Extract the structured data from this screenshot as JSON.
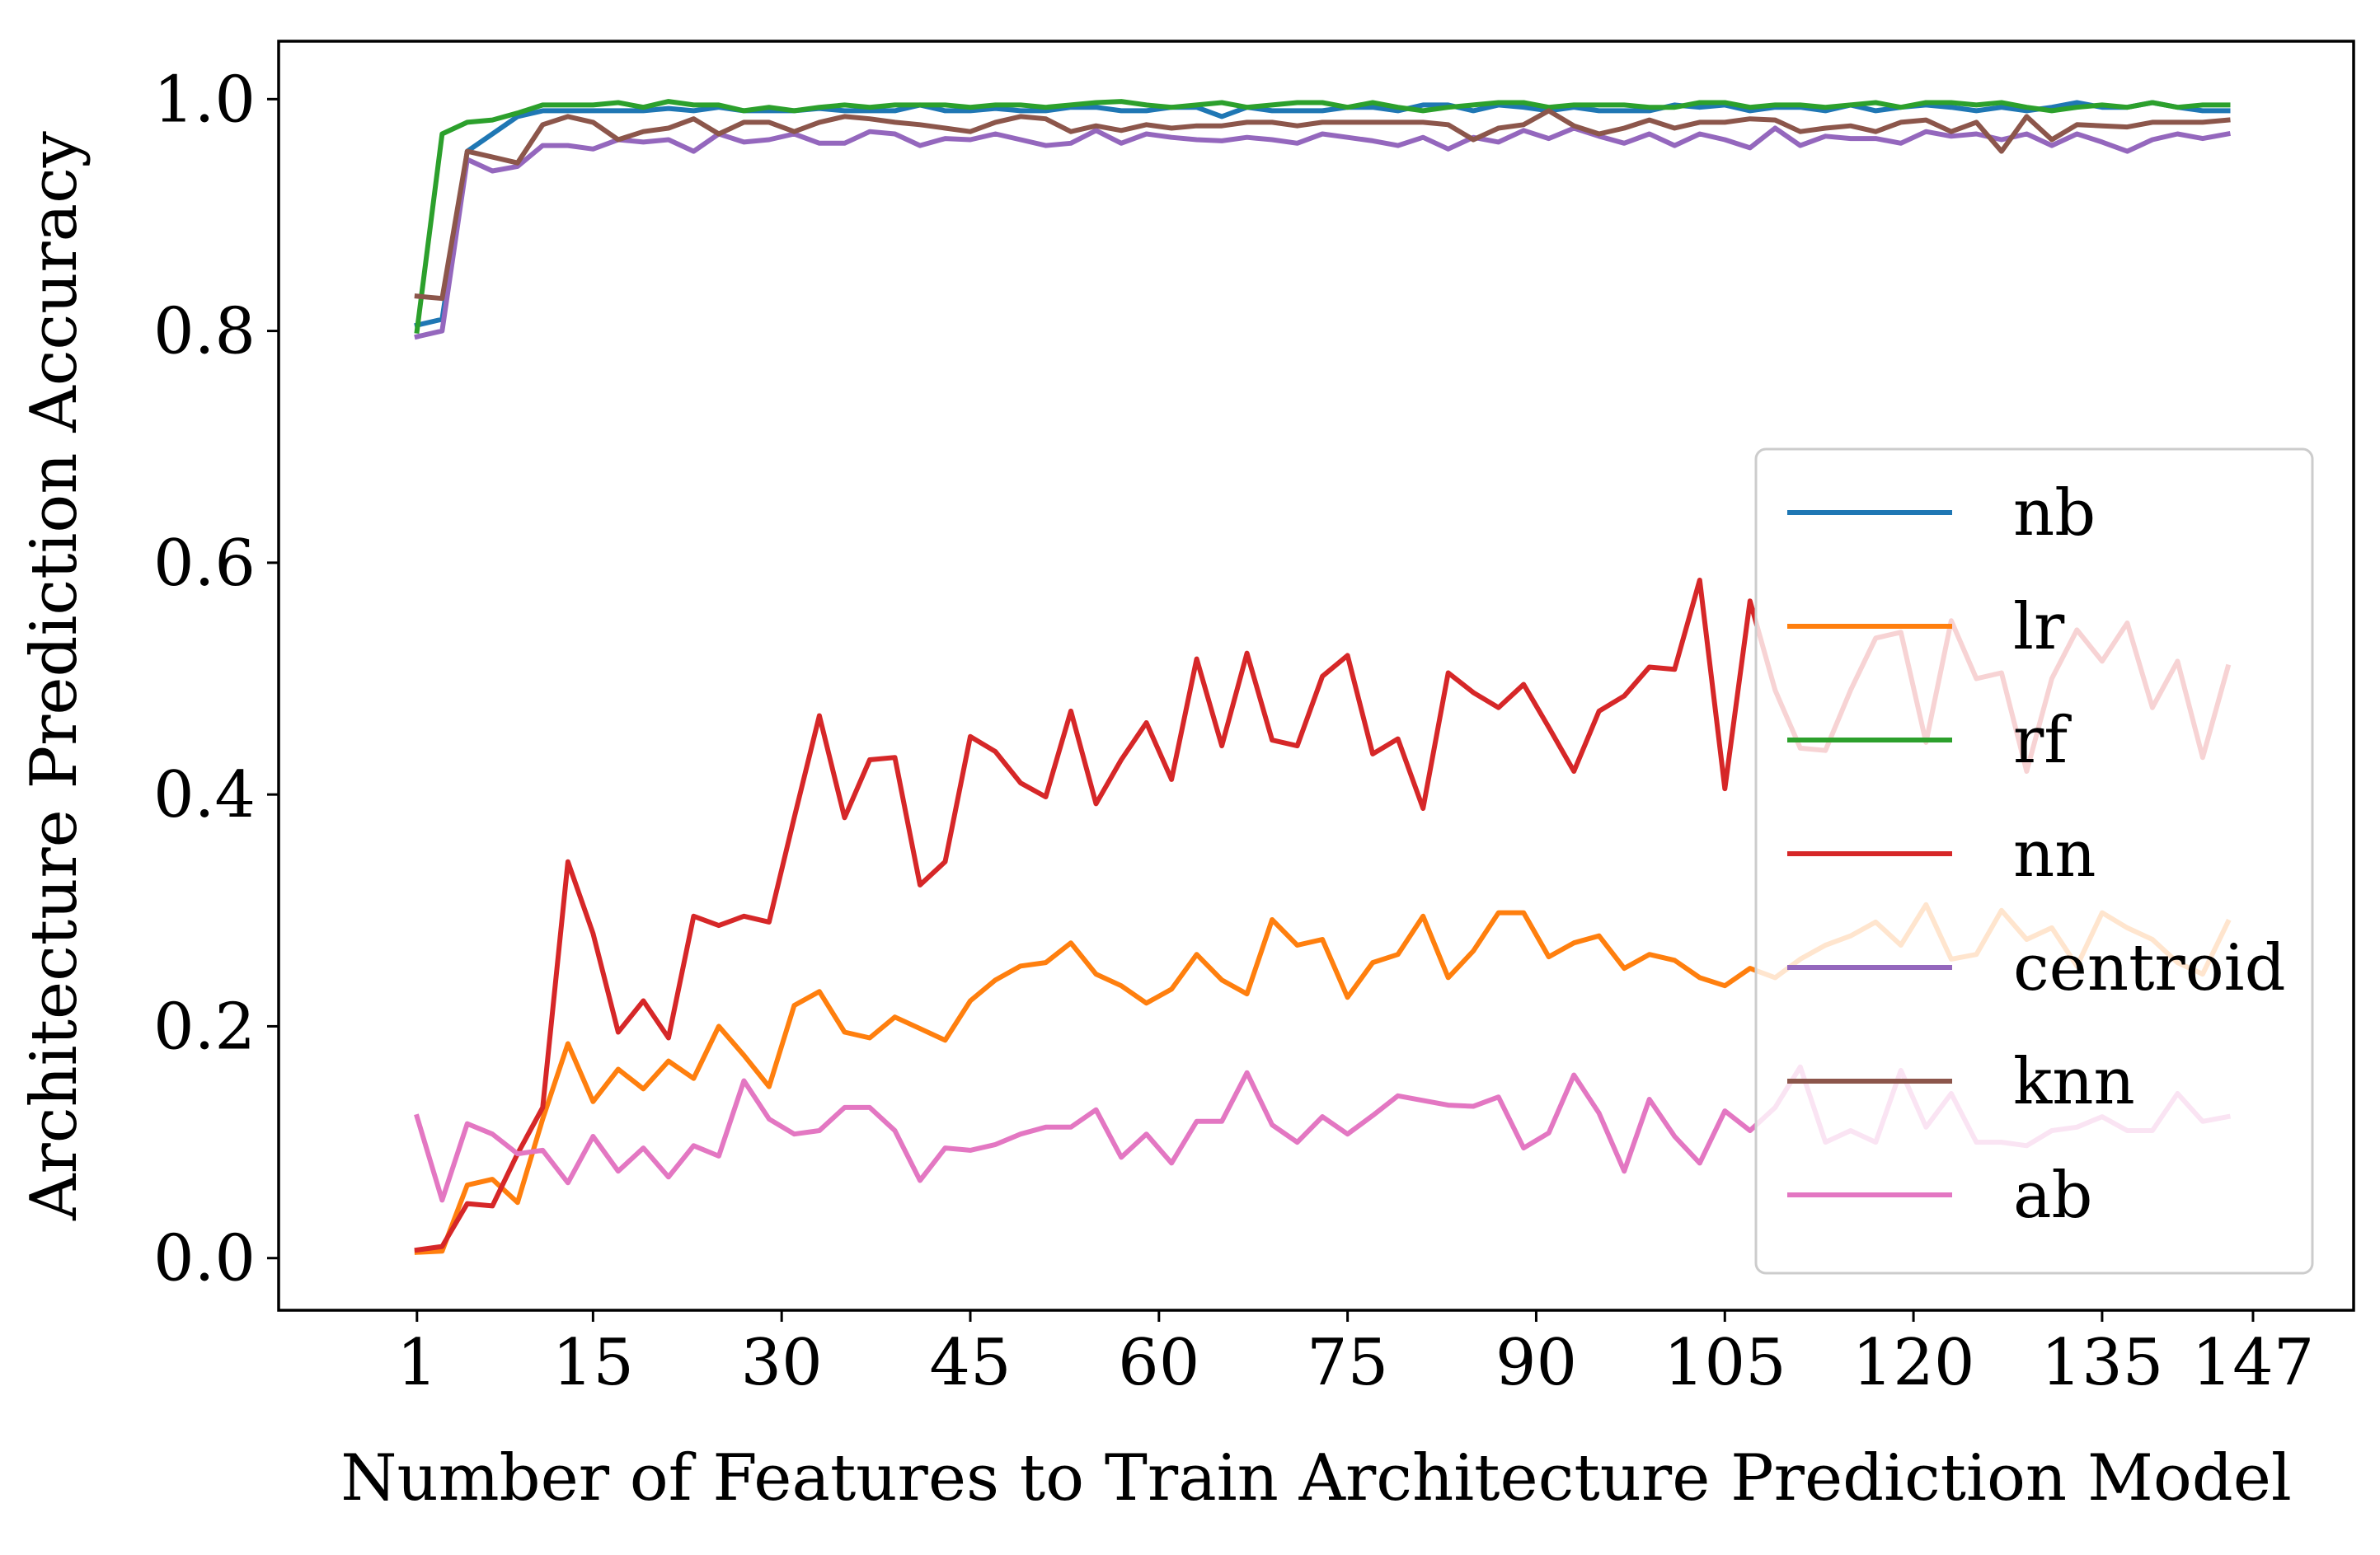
{
  "chart_data": {
    "type": "line",
    "title": "",
    "xlabel": "Number of Features to Train Architecture Prediction Model",
    "ylabel": "Architecture Prediction Accuracy",
    "xlim": [
      -10,
      155
    ],
    "ylim": [
      -0.045,
      1.05
    ],
    "xticks": [
      1,
      15,
      30,
      45,
      60,
      75,
      90,
      105,
      120,
      135,
      147
    ],
    "xtick_labels": [
      "1",
      "15",
      "30",
      "45",
      "60",
      "75",
      "90",
      "105",
      "120",
      "135",
      "147"
    ],
    "yticks": [
      0.0,
      0.2,
      0.4,
      0.6,
      0.8,
      1.0
    ],
    "ytick_labels": [
      "0.0",
      "0.2",
      "0.4",
      "0.6",
      "0.8",
      "1.0"
    ],
    "grid": false,
    "legend": {
      "position": "center-right"
    },
    "x": [
      1,
      3,
      5,
      7,
      9,
      11,
      13,
      15,
      17,
      19,
      21,
      23,
      25,
      27,
      29,
      31,
      33,
      35,
      37,
      39,
      41,
      43,
      45,
      47,
      49,
      51,
      53,
      55,
      57,
      59,
      61,
      63,
      65,
      67,
      69,
      71,
      73,
      75,
      77,
      79,
      81,
      83,
      85,
      87,
      89,
      91,
      93,
      95,
      97,
      99,
      101,
      103,
      105,
      107,
      109,
      111,
      113,
      115,
      117,
      119,
      121,
      123,
      125,
      127,
      129,
      131,
      133,
      135,
      137,
      139,
      141,
      143,
      145
    ],
    "series": [
      {
        "name": "nb",
        "color": "#1f77b4",
        "values": [
          0.805,
          0.81,
          0.955,
          0.97,
          0.985,
          0.99,
          0.99,
          0.99,
          0.99,
          0.99,
          0.992,
          0.99,
          0.993,
          0.99,
          0.99,
          0.99,
          0.992,
          0.99,
          0.99,
          0.99,
          0.995,
          0.99,
          0.99,
          0.992,
          0.99,
          0.99,
          0.993,
          0.993,
          0.99,
          0.99,
          0.993,
          0.993,
          0.985,
          0.993,
          0.99,
          0.99,
          0.99,
          0.993,
          0.993,
          0.99,
          0.995,
          0.995,
          0.99,
          0.995,
          0.993,
          0.99,
          0.993,
          0.99,
          0.99,
          0.99,
          0.995,
          0.993,
          0.995,
          0.99,
          0.993,
          0.993,
          0.99,
          0.995,
          0.99,
          0.993,
          0.995,
          0.993,
          0.99,
          0.993,
          0.99,
          0.993,
          0.997,
          0.993,
          0.993,
          0.997,
          0.993,
          0.99,
          0.99
        ]
      },
      {
        "name": "lr",
        "color": "#ff7f0e",
        "values": [
          0.005,
          0.006,
          0.063,
          0.068,
          0.048,
          0.12,
          0.185,
          0.135,
          0.163,
          0.146,
          0.17,
          0.155,
          0.2,
          0.175,
          0.148,
          0.218,
          0.23,
          0.195,
          0.19,
          0.208,
          0.198,
          0.188,
          0.222,
          0.24,
          0.252,
          0.255,
          0.272,
          0.245,
          0.235,
          0.22,
          0.232,
          0.262,
          0.24,
          0.228,
          0.292,
          0.27,
          0.275,
          0.225,
          0.255,
          0.262,
          0.295,
          0.242,
          0.265,
          0.298,
          0.298,
          0.26,
          0.272,
          0.278,
          0.25,
          0.262,
          0.257,
          0.242,
          0.235,
          0.25,
          0.242,
          0.258,
          0.27,
          0.278,
          0.29,
          0.27,
          0.305,
          0.258,
          0.262,
          0.3,
          0.275,
          0.285,
          0.252,
          0.298,
          0.285,
          0.275,
          0.255,
          0.245,
          0.29
        ]
      },
      {
        "name": "rf",
        "color": "#2ca02c",
        "values": [
          0.8,
          0.97,
          0.98,
          0.982,
          0.988,
          0.995,
          0.995,
          0.995,
          0.997,
          0.993,
          0.998,
          0.995,
          0.995,
          0.99,
          0.993,
          0.99,
          0.993,
          0.995,
          0.993,
          0.995,
          0.995,
          0.995,
          0.993,
          0.995,
          0.995,
          0.993,
          0.995,
          0.997,
          0.998,
          0.995,
          0.993,
          0.995,
          0.997,
          0.993,
          0.995,
          0.997,
          0.997,
          0.993,
          0.997,
          0.993,
          0.99,
          0.993,
          0.995,
          0.997,
          0.997,
          0.993,
          0.995,
          0.995,
          0.995,
          0.993,
          0.993,
          0.997,
          0.997,
          0.993,
          0.995,
          0.995,
          0.993,
          0.995,
          0.997,
          0.993,
          0.997,
          0.997,
          0.995,
          0.997,
          0.993,
          0.99,
          0.993,
          0.995,
          0.993,
          0.997,
          0.993,
          0.995,
          0.995
        ]
      },
      {
        "name": "nn",
        "color": "#d62728",
        "values": [
          0.007,
          0.01,
          0.047,
          0.045,
          0.09,
          0.13,
          0.342,
          0.28,
          0.195,
          0.222,
          0.19,
          0.295,
          0.287,
          0.295,
          0.29,
          0.38,
          0.468,
          0.38,
          0.43,
          0.432,
          0.322,
          0.342,
          0.45,
          0.437,
          0.41,
          0.398,
          0.472,
          0.392,
          0.43,
          0.462,
          0.413,
          0.517,
          0.442,
          0.522,
          0.447,
          0.442,
          0.502,
          0.52,
          0.435,
          0.448,
          0.388,
          0.505,
          0.488,
          0.475,
          0.495,
          0.458,
          0.42,
          0.472,
          0.485,
          0.51,
          0.508,
          0.585,
          0.405,
          0.567,
          0.49,
          0.44,
          0.438,
          0.49,
          0.535,
          0.54,
          0.445,
          0.55,
          0.5,
          0.505,
          0.42,
          0.5,
          0.542,
          0.515,
          0.548,
          0.475,
          0.515,
          0.432,
          0.51
        ]
      },
      {
        "name": "centroid",
        "color": "#9467bd",
        "values": [
          0.795,
          0.8,
          0.948,
          0.938,
          0.942,
          0.96,
          0.96,
          0.957,
          0.965,
          0.963,
          0.965,
          0.955,
          0.97,
          0.963,
          0.965,
          0.97,
          0.962,
          0.962,
          0.972,
          0.97,
          0.96,
          0.966,
          0.965,
          0.97,
          0.965,
          0.96,
          0.962,
          0.973,
          0.962,
          0.97,
          0.967,
          0.965,
          0.964,
          0.967,
          0.965,
          0.962,
          0.97,
          0.967,
          0.964,
          0.96,
          0.967,
          0.957,
          0.967,
          0.963,
          0.973,
          0.966,
          0.975,
          0.968,
          0.962,
          0.97,
          0.96,
          0.97,
          0.965,
          0.958,
          0.975,
          0.96,
          0.968,
          0.966,
          0.966,
          0.962,
          0.972,
          0.968,
          0.97,
          0.965,
          0.97,
          0.96,
          0.97,
          0.963,
          0.955,
          0.965,
          0.97,
          0.966,
          0.97
        ]
      },
      {
        "name": "knn",
        "color": "#8c564b",
        "values": [
          0.83,
          0.828,
          0.955,
          0.95,
          0.945,
          0.978,
          0.985,
          0.98,
          0.965,
          0.972,
          0.975,
          0.983,
          0.97,
          0.98,
          0.98,
          0.972,
          0.98,
          0.985,
          0.983,
          0.98,
          0.978,
          0.975,
          0.972,
          0.98,
          0.985,
          0.983,
          0.972,
          0.977,
          0.973,
          0.978,
          0.975,
          0.977,
          0.977,
          0.98,
          0.98,
          0.977,
          0.98,
          0.98,
          0.98,
          0.98,
          0.98,
          0.978,
          0.965,
          0.975,
          0.978,
          0.99,
          0.977,
          0.97,
          0.975,
          0.982,
          0.975,
          0.98,
          0.98,
          0.983,
          0.982,
          0.972,
          0.975,
          0.977,
          0.972,
          0.98,
          0.982,
          0.972,
          0.98,
          0.955,
          0.985,
          0.965,
          0.978,
          0.977,
          0.976,
          0.98,
          0.98,
          0.98,
          0.982
        ]
      },
      {
        "name": "ab",
        "color": "#e377c2",
        "values": [
          0.122,
          0.05,
          0.116,
          0.107,
          0.09,
          0.093,
          0.065,
          0.105,
          0.075,
          0.095,
          0.07,
          0.097,
          0.088,
          0.153,
          0.12,
          0.107,
          0.11,
          0.13,
          0.13,
          0.11,
          0.067,
          0.095,
          0.093,
          0.098,
          0.107,
          0.113,
          0.113,
          0.128,
          0.087,
          0.107,
          0.082,
          0.118,
          0.118,
          0.16,
          0.115,
          0.1,
          0.122,
          0.107,
          0.123,
          0.14,
          0.136,
          0.132,
          0.131,
          0.139,
          0.095,
          0.108,
          0.158,
          0.125,
          0.075,
          0.137,
          0.105,
          0.082,
          0.127,
          0.11,
          0.13,
          0.165,
          0.1,
          0.11,
          0.1,
          0.162,
          0.113,
          0.142,
          0.1,
          0.1,
          0.097,
          0.11,
          0.113,
          0.122,
          0.11,
          0.11,
          0.142,
          0.118,
          0.122
        ]
      }
    ]
  }
}
